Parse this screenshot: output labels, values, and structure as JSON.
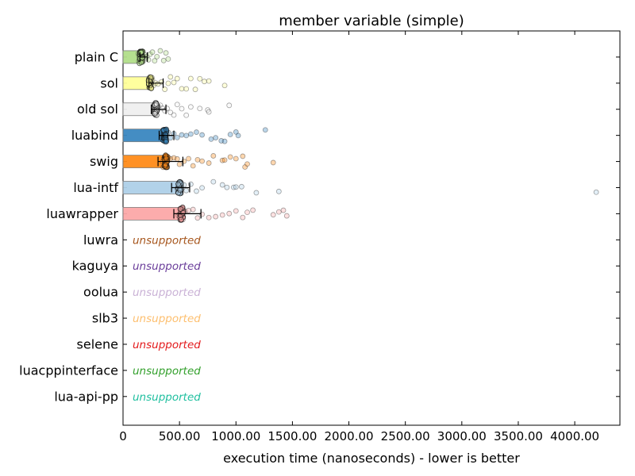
{
  "chart_data": {
    "type": "bar",
    "title": "member variable (simple)",
    "xlabel": "execution time (nanoseconds) - lower is better",
    "ylabel": "",
    "xlim": [
      0,
      4400
    ],
    "x_ticks": [
      {
        "value": 0,
        "label": "0"
      },
      {
        "value": 500,
        "label": "500.00"
      },
      {
        "value": 1000,
        "label": "1000.00"
      },
      {
        "value": 1500,
        "label": "1500.00"
      },
      {
        "value": 2000,
        "label": "2000.00"
      },
      {
        "value": 2500,
        "label": "2500.00"
      },
      {
        "value": 3000,
        "label": "3000.00"
      },
      {
        "value": 3500,
        "label": "3500.00"
      },
      {
        "value": 4000,
        "label": "4000.00"
      }
    ],
    "unsupported_text": "unsupported",
    "categories": [
      "plain C",
      "sol",
      "old sol",
      "luabind",
      "swig",
      "lua-intf",
      "luawrapper",
      "luwra",
      "kaguya",
      "oolua",
      "slb3",
      "selene",
      "luacppinterface",
      "lua-api-pp"
    ],
    "series": [
      {
        "name": "plain C",
        "supported": true,
        "color": "#b2df8a",
        "mean": 160,
        "err": [
          150,
          215
        ],
        "samples": [
          135,
          140,
          142,
          145,
          148,
          150,
          152,
          155,
          158,
          160,
          162,
          165,
          168,
          170,
          175,
          180,
          190,
          200,
          210,
          225,
          240,
          260,
          280,
          300,
          330,
          360,
          380,
          400
        ]
      },
      {
        "name": "sol",
        "supported": true,
        "color": "#ffff99",
        "mean": 240,
        "err": [
          230,
          355
        ],
        "samples": [
          225,
          230,
          235,
          240,
          245,
          250,
          255,
          260,
          270,
          290,
          310,
          340,
          370,
          400,
          420,
          450,
          480,
          520,
          560,
          600,
          640,
          680,
          720,
          760,
          900
        ]
      },
      {
        "name": "old sol",
        "supported": true,
        "color": "#f0f0f0",
        "mean": 290,
        "err": [
          250,
          380
        ],
        "samples": [
          270,
          275,
          280,
          285,
          290,
          295,
          300,
          310,
          330,
          350,
          370,
          390,
          420,
          450,
          480,
          520,
          560,
          600,
          680,
          750,
          760,
          940
        ]
      },
      {
        "name": "luabind",
        "supported": true,
        "color": "#3a87c0",
        "mean": 370,
        "err": [
          320,
          450
        ],
        "samples": [
          345,
          350,
          355,
          360,
          365,
          370,
          380,
          400,
          420,
          450,
          480,
          520,
          560,
          600,
          650,
          700,
          780,
          820,
          870,
          900,
          950,
          1000,
          1020,
          1260
        ]
      },
      {
        "name": "swig",
        "supported": true,
        "color": "#ff8c1a",
        "mean": 380,
        "err": [
          310,
          530
        ],
        "samples": [
          350,
          355,
          360,
          370,
          380,
          390,
          400,
          420,
          450,
          480,
          500,
          540,
          580,
          620,
          660,
          700,
          760,
          800,
          880,
          900,
          950,
          1000,
          1060,
          1080,
          1100,
          1330
        ]
      },
      {
        "name": "lua-intf",
        "supported": true,
        "color": "#aed0e8",
        "mean": 500,
        "err": [
          430,
          590
        ],
        "samples": [
          480,
          490,
          500,
          505,
          510,
          515,
          520,
          540,
          560,
          600,
          650,
          700,
          800,
          880,
          920,
          980,
          1000,
          1050,
          1180,
          1380,
          4190
        ]
      },
      {
        "name": "luawrapper",
        "supported": true,
        "color": "#fca8a8",
        "mean": 520,
        "err": [
          450,
          690
        ],
        "samples": [
          490,
          500,
          505,
          510,
          515,
          520,
          530,
          550,
          580,
          620,
          660,
          700,
          760,
          820,
          880,
          940,
          1000,
          1060,
          1100,
          1150,
          1330,
          1380,
          1420,
          1450
        ]
      },
      {
        "name": "luwra",
        "supported": false,
        "color": "#a6561d"
      },
      {
        "name": "kaguya",
        "supported": false,
        "color": "#6a3d9a"
      },
      {
        "name": "oolua",
        "supported": false,
        "color": "#cab2d6"
      },
      {
        "name": "slb3",
        "supported": false,
        "color": "#fdbf6f"
      },
      {
        "name": "selene",
        "supported": false,
        "color": "#e31a1c"
      },
      {
        "name": "luacppinterface",
        "supported": false,
        "color": "#33a02c"
      },
      {
        "name": "lua-api-pp",
        "supported": false,
        "color": "#1fbf9f"
      }
    ]
  }
}
